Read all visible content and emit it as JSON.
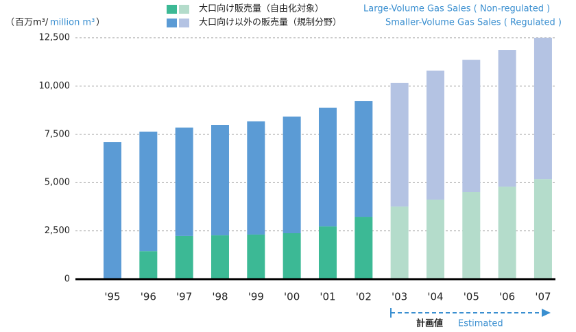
{
  "chart_data": {
    "type": "stacked_bar",
    "y_label": "百万m³/",
    "y_label_en": "million m³",
    "categories": [
      "'95",
      "'96",
      "'97",
      "'98",
      "'99",
      "'00",
      "'01",
      "'02",
      "'03",
      "'04",
      "'05",
      "'06",
      "'07"
    ],
    "series": [
      {
        "name": "大口向け販売量（自由化対象）",
        "name_en": "Large-Volume Gas Sales ( Non-regulated )",
        "color": "#3cb995",
        "estimated_color": "#b4dccb",
        "values": [
          0,
          1450,
          2240,
          2270,
          2310,
          2380,
          2730,
          3230,
          3760,
          4120,
          4510,
          4790,
          5180
        ]
      },
      {
        "name": "大口向け以外の販売量（規制分野）",
        "name_en": "Smaller-Volume Gas Sales ( Regulated )",
        "color": "#5b9bd5",
        "estimated_color": "#b4c3e3",
        "values": [
          7100,
          6190,
          5610,
          5720,
          5860,
          6040,
          6150,
          6000,
          6400,
          6680,
          6850,
          7070,
          7320
        ]
      }
    ],
    "estimated_from": "'03",
    "estimated_label": "計画値",
    "estimated_label_en": "Estimated",
    "ylim": [
      0,
      12500
    ],
    "yticks": [
      0,
      {
        "value": 2500,
        "label": "2,500"
      },
      {
        "value": 5000,
        "label": "5,000"
      },
      {
        "value": 7500,
        "label": "7,500"
      },
      {
        "value": 10000,
        "label": "10,000"
      },
      {
        "value": 12500,
        "label": "12,500"
      }
    ],
    "grid": true
  }
}
